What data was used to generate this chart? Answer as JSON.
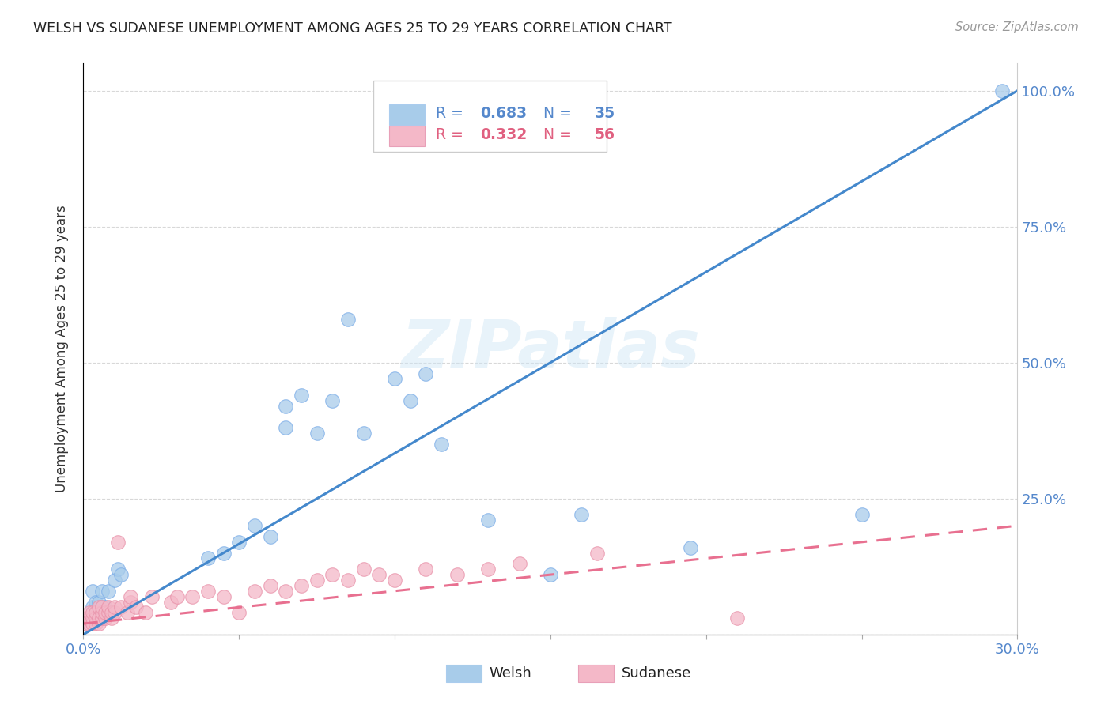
{
  "title": "WELSH VS SUDANESE UNEMPLOYMENT AMONG AGES 25 TO 29 YEARS CORRELATION CHART",
  "source": "Source: ZipAtlas.com",
  "ylabel": "Unemployment Among Ages 25 to 29 years",
  "xlim": [
    0.0,
    0.3
  ],
  "ylim": [
    0.0,
    1.05
  ],
  "welsh_R": 0.683,
  "welsh_N": 35,
  "sudanese_R": 0.332,
  "sudanese_N": 56,
  "welsh_color": "#a8ccea",
  "sudanese_color": "#f4b8c8",
  "welsh_line_color": "#4488cc",
  "sudanese_line_color": "#e87090",
  "background_color": "#ffffff",
  "watermark": "ZIPatlas",
  "tick_color": "#5588cc",
  "grid_color": "#d8d8d8",
  "welsh_line_x0": 0.0,
  "welsh_line_y0": 0.0,
  "welsh_line_x1": 0.3,
  "welsh_line_y1": 1.0,
  "sudanese_line_x0": 0.0,
  "sudanese_line_y0": 0.02,
  "sudanese_line_x1": 0.3,
  "sudanese_line_y1": 0.2,
  "welsh_x": [
    0.002,
    0.003,
    0.003,
    0.004,
    0.004,
    0.005,
    0.005,
    0.006,
    0.007,
    0.008,
    0.01,
    0.011,
    0.012,
    0.04,
    0.045,
    0.05,
    0.055,
    0.06,
    0.065,
    0.065,
    0.07,
    0.075,
    0.08,
    0.085,
    0.09,
    0.1,
    0.105,
    0.11,
    0.115,
    0.13,
    0.15,
    0.16,
    0.195,
    0.25,
    0.295
  ],
  "welsh_y": [
    0.02,
    0.05,
    0.08,
    0.03,
    0.06,
    0.04,
    0.06,
    0.08,
    0.05,
    0.08,
    0.1,
    0.12,
    0.11,
    0.14,
    0.15,
    0.17,
    0.2,
    0.18,
    0.38,
    0.42,
    0.44,
    0.37,
    0.43,
    0.58,
    0.37,
    0.47,
    0.43,
    0.48,
    0.35,
    0.21,
    0.11,
    0.22,
    0.16,
    0.22,
    1.0
  ],
  "sudanese_x": [
    0.001,
    0.001,
    0.002,
    0.002,
    0.002,
    0.003,
    0.003,
    0.003,
    0.003,
    0.004,
    0.004,
    0.004,
    0.005,
    0.005,
    0.005,
    0.006,
    0.006,
    0.006,
    0.007,
    0.007,
    0.008,
    0.008,
    0.009,
    0.009,
    0.01,
    0.01,
    0.011,
    0.012,
    0.014,
    0.015,
    0.015,
    0.017,
    0.02,
    0.022,
    0.028,
    0.03,
    0.035,
    0.04,
    0.045,
    0.05,
    0.055,
    0.06,
    0.065,
    0.07,
    0.075,
    0.08,
    0.085,
    0.09,
    0.095,
    0.1,
    0.11,
    0.12,
    0.13,
    0.14,
    0.165,
    0.21
  ],
  "sudanese_y": [
    0.02,
    0.03,
    0.02,
    0.03,
    0.04,
    0.02,
    0.02,
    0.03,
    0.04,
    0.02,
    0.03,
    0.04,
    0.02,
    0.03,
    0.05,
    0.03,
    0.04,
    0.05,
    0.03,
    0.04,
    0.04,
    0.05,
    0.03,
    0.04,
    0.04,
    0.05,
    0.17,
    0.05,
    0.04,
    0.06,
    0.07,
    0.05,
    0.04,
    0.07,
    0.06,
    0.07,
    0.07,
    0.08,
    0.07,
    0.04,
    0.08,
    0.09,
    0.08,
    0.09,
    0.1,
    0.11,
    0.1,
    0.12,
    0.11,
    0.1,
    0.12,
    0.11,
    0.12,
    0.13,
    0.15,
    0.03
  ]
}
